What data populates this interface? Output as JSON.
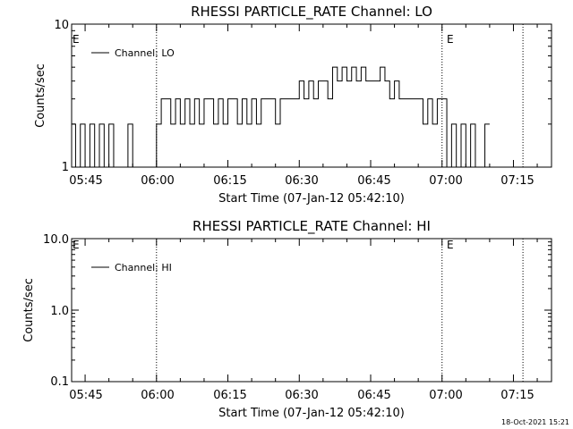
{
  "chart_data": [
    {
      "type": "line",
      "title": "RHESSI PARTICLE_RATE Channel: LO",
      "xlabel": "Start Time (07-Jan-12 05:42:10)",
      "ylabel": "Counts/sec",
      "yscale": "log",
      "ylim": [
        1,
        10
      ],
      "ytick_labels": [
        "10",
        "1"
      ],
      "xlim": [
        "05:42:10",
        "07:23:00"
      ],
      "xtick_labels": [
        "05:45",
        "06:00",
        "06:15",
        "06:30",
        "06:45",
        "07:00",
        "07:15"
      ],
      "legend": "top-left",
      "grid": false,
      "markers": [
        {
          "label": "E",
          "time": "05:42:10"
        },
        {
          "label": "E",
          "time": "07:00:00"
        }
      ],
      "vlines_dotted": [
        "06:00",
        "07:00",
        "07:17"
      ],
      "series": [
        {
          "name": "Channel: LO",
          "x": [
            "05:42:10",
            "05:43:00",
            "05:44:00",
            "05:45:00",
            "05:46:00",
            "05:47:00",
            "05:48:00",
            "05:49:00",
            "05:50:00",
            "05:51:00",
            "05:52:00",
            "05:53:00",
            "05:54:00",
            "05:55:00",
            "05:56:00",
            "05:57:00",
            "05:58:00",
            "05:59:00",
            "06:00:00",
            "06:01:00",
            "06:02:00",
            "06:03:00",
            "06:04:00",
            "06:05:00",
            "06:06:00",
            "06:07:00",
            "06:08:00",
            "06:09:00",
            "06:10:00",
            "06:11:00",
            "06:12:00",
            "06:13:00",
            "06:14:00",
            "06:15:00",
            "06:16:00",
            "06:17:00",
            "06:18:00",
            "06:19:00",
            "06:20:00",
            "06:21:00",
            "06:22:00",
            "06:23:00",
            "06:24:00",
            "06:25:00",
            "06:26:00",
            "06:27:00",
            "06:28:00",
            "06:29:00",
            "06:30:00",
            "06:31:00",
            "06:32:00",
            "06:33:00",
            "06:34:00",
            "06:35:00",
            "06:36:00",
            "06:37:00",
            "06:38:00",
            "06:39:00",
            "06:40:00",
            "06:41:00",
            "06:42:00",
            "06:43:00",
            "06:44:00",
            "06:45:00",
            "06:46:00",
            "06:47:00",
            "06:48:00",
            "06:49:00",
            "06:50:00",
            "06:51:00",
            "06:52:00",
            "06:53:00",
            "06:54:00",
            "06:55:00",
            "06:56:00",
            "06:57:00",
            "06:58:00",
            "06:59:00",
            "07:00:00",
            "07:01:00",
            "07:02:00",
            "07:03:00",
            "07:04:00",
            "07:05:00",
            "07:06:00",
            "07:07:00",
            "07:08:00",
            "07:09:00"
          ],
          "values": [
            2,
            1,
            2,
            1,
            2,
            1,
            2,
            1,
            2,
            1,
            1,
            1,
            2,
            1,
            1,
            1,
            1,
            1,
            2,
            3,
            3,
            2,
            3,
            2,
            3,
            2,
            3,
            2,
            3,
            3,
            2,
            3,
            2,
            3,
            3,
            2,
            3,
            2,
            3,
            2,
            3,
            3,
            3,
            2,
            3,
            3,
            3,
            3,
            4,
            3,
            4,
            3,
            4,
            4,
            3,
            5,
            4,
            5,
            4,
            5,
            4,
            5,
            4,
            4,
            4,
            5,
            4,
            3,
            4,
            3,
            3,
            3,
            3,
            3,
            2,
            3,
            2,
            3,
            3,
            1,
            2,
            1,
            2,
            1,
            2,
            1,
            1,
            2
          ]
        }
      ]
    },
    {
      "type": "line",
      "title": "RHESSI PARTICLE_RATE Channel: HI",
      "xlabel": "Start Time (07-Jan-12 05:42:10)",
      "ylabel": "Counts/sec",
      "yscale": "log",
      "ylim": [
        0.1,
        10
      ],
      "ytick_labels": [
        "10.0",
        "1.0",
        "0.1"
      ],
      "xlim": [
        "05:42:10",
        "07:23:00"
      ],
      "xtick_labels": [
        "05:45",
        "06:00",
        "06:15",
        "06:30",
        "06:45",
        "07:00",
        "07:15"
      ],
      "legend": "top-left",
      "grid": false,
      "markers": [
        {
          "label": "E",
          "time": "05:42:10"
        },
        {
          "label": "E",
          "time": "07:00:00"
        }
      ],
      "vlines_dotted": [
        "06:00",
        "07:00",
        "07:17"
      ],
      "series": [
        {
          "name": "Channel: HI",
          "x": [],
          "values": []
        }
      ]
    }
  ],
  "footer": {
    "timestamp": "18-Oct-2021 15:21"
  }
}
